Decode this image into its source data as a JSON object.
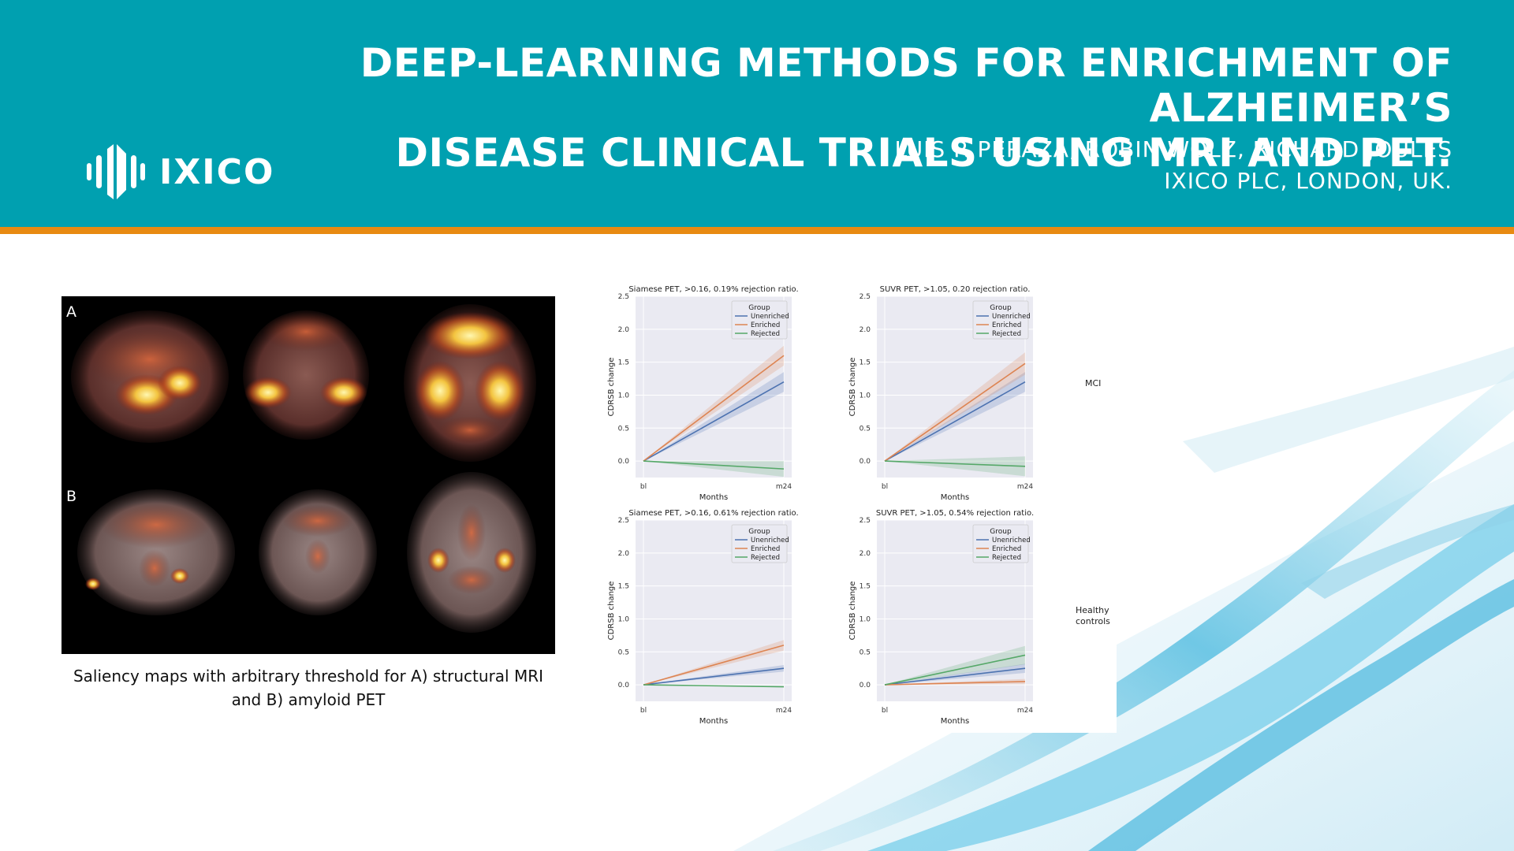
{
  "header": {
    "title_line1": "DEEP-LEARNING METHODS FOR ENRICHMENT OF ALZHEIMER’S",
    "title_line2": "DISEASE CLINICAL TRIALS USING MRI AND PET.",
    "authors": "LUIS R PERAZA, ROBIN WOLZ, RICHARD JOULES",
    "affiliation": "IXICO PLC, LONDON, UK.",
    "logo_text": "IXICO",
    "colors": {
      "banner": "#00a0b0",
      "stripe": "#e88a12"
    }
  },
  "left_figure": {
    "label_a": "A",
    "label_b": "B",
    "caption_line1": "Saliency maps with arbitrary threshold for A) structural MRI",
    "caption_line2": "and B) amyloid PET"
  },
  "right_figure": {
    "row_labels": [
      "MCI",
      "Healthy controls"
    ],
    "colors": {
      "Unenriched": "#4c72b0",
      "Enriched": "#dd8452",
      "Rejected": "#55a868",
      "plot_bg": "#eaeaf2"
    }
  },
  "chart_data": [
    {
      "type": "line",
      "title": "Siamese PET, >0.16, 0.19% rejection ratio.",
      "xlabel": "Months",
      "ylabel": "CDRSB change",
      "x": [
        "bl",
        "m24"
      ],
      "ylim": [
        -0.25,
        2.5
      ],
      "yticks": [
        "0.0",
        "0.5",
        "1.0",
        "1.5",
        "2.0",
        "2.5"
      ],
      "legend_title": "Group",
      "legend_position": "top-right",
      "series": [
        {
          "name": "Unenriched",
          "values": [
            0.0,
            1.2
          ],
          "band": [
            0.0,
            0.15
          ]
        },
        {
          "name": "Enriched",
          "values": [
            0.0,
            1.6
          ],
          "band": [
            0.0,
            0.15
          ]
        },
        {
          "name": "Rejected",
          "values": [
            0.0,
            -0.12
          ],
          "band": [
            0.0,
            0.12
          ]
        }
      ]
    },
    {
      "type": "line",
      "title": "SUVR PET, >1.05, 0.20 rejection ratio.",
      "xlabel": "Months",
      "ylabel": "CDRSB change",
      "x": [
        "bl",
        "m24"
      ],
      "ylim": [
        -0.25,
        2.5
      ],
      "yticks": [
        "0.0",
        "0.5",
        "1.0",
        "1.5",
        "2.0",
        "2.5"
      ],
      "legend_title": "Group",
      "legend_position": "top-right",
      "series": [
        {
          "name": "Unenriched",
          "values": [
            0.0,
            1.2
          ],
          "band": [
            0.0,
            0.15
          ]
        },
        {
          "name": "Enriched",
          "values": [
            0.0,
            1.48
          ],
          "band": [
            0.0,
            0.17
          ]
        },
        {
          "name": "Rejected",
          "values": [
            0.0,
            -0.08
          ],
          "band": [
            0.0,
            0.15
          ]
        }
      ]
    },
    {
      "type": "line",
      "title": "Siamese PET, >0.16, 0.61% rejection ratio.",
      "xlabel": "Months",
      "ylabel": "CDRSB change",
      "x": [
        "bl",
        "m24"
      ],
      "ylim": [
        -0.25,
        2.5
      ],
      "yticks": [
        "0.0",
        "0.5",
        "1.0",
        "1.5",
        "2.0",
        "2.5"
      ],
      "legend_title": "Group",
      "legend_position": "top-right",
      "series": [
        {
          "name": "Unenriched",
          "values": [
            0.0,
            0.25
          ],
          "band": [
            0.0,
            0.05
          ]
        },
        {
          "name": "Enriched",
          "values": [
            0.0,
            0.6
          ],
          "band": [
            0.0,
            0.08
          ]
        },
        {
          "name": "Rejected",
          "values": [
            0.0,
            -0.03
          ],
          "band": [
            0.0,
            0.01
          ]
        }
      ]
    },
    {
      "type": "line",
      "title": "SUVR PET, >1.05, 0.54% rejection ratio.",
      "xlabel": "Months",
      "ylabel": "CDRSB change",
      "x": [
        "bl",
        "m24"
      ],
      "ylim": [
        -0.25,
        2.5
      ],
      "yticks": [
        "0.0",
        "0.5",
        "1.0",
        "1.5",
        "2.0",
        "2.5"
      ],
      "legend_title": "Group",
      "legend_position": "top-right",
      "series": [
        {
          "name": "Unenriched",
          "values": [
            0.0,
            0.25
          ],
          "band": [
            0.0,
            0.07
          ]
        },
        {
          "name": "Enriched",
          "values": [
            0.0,
            0.05
          ],
          "band": [
            0.0,
            0.04
          ]
        },
        {
          "name": "Rejected",
          "values": [
            0.0,
            0.45
          ],
          "band": [
            0.0,
            0.14
          ]
        }
      ]
    }
  ]
}
